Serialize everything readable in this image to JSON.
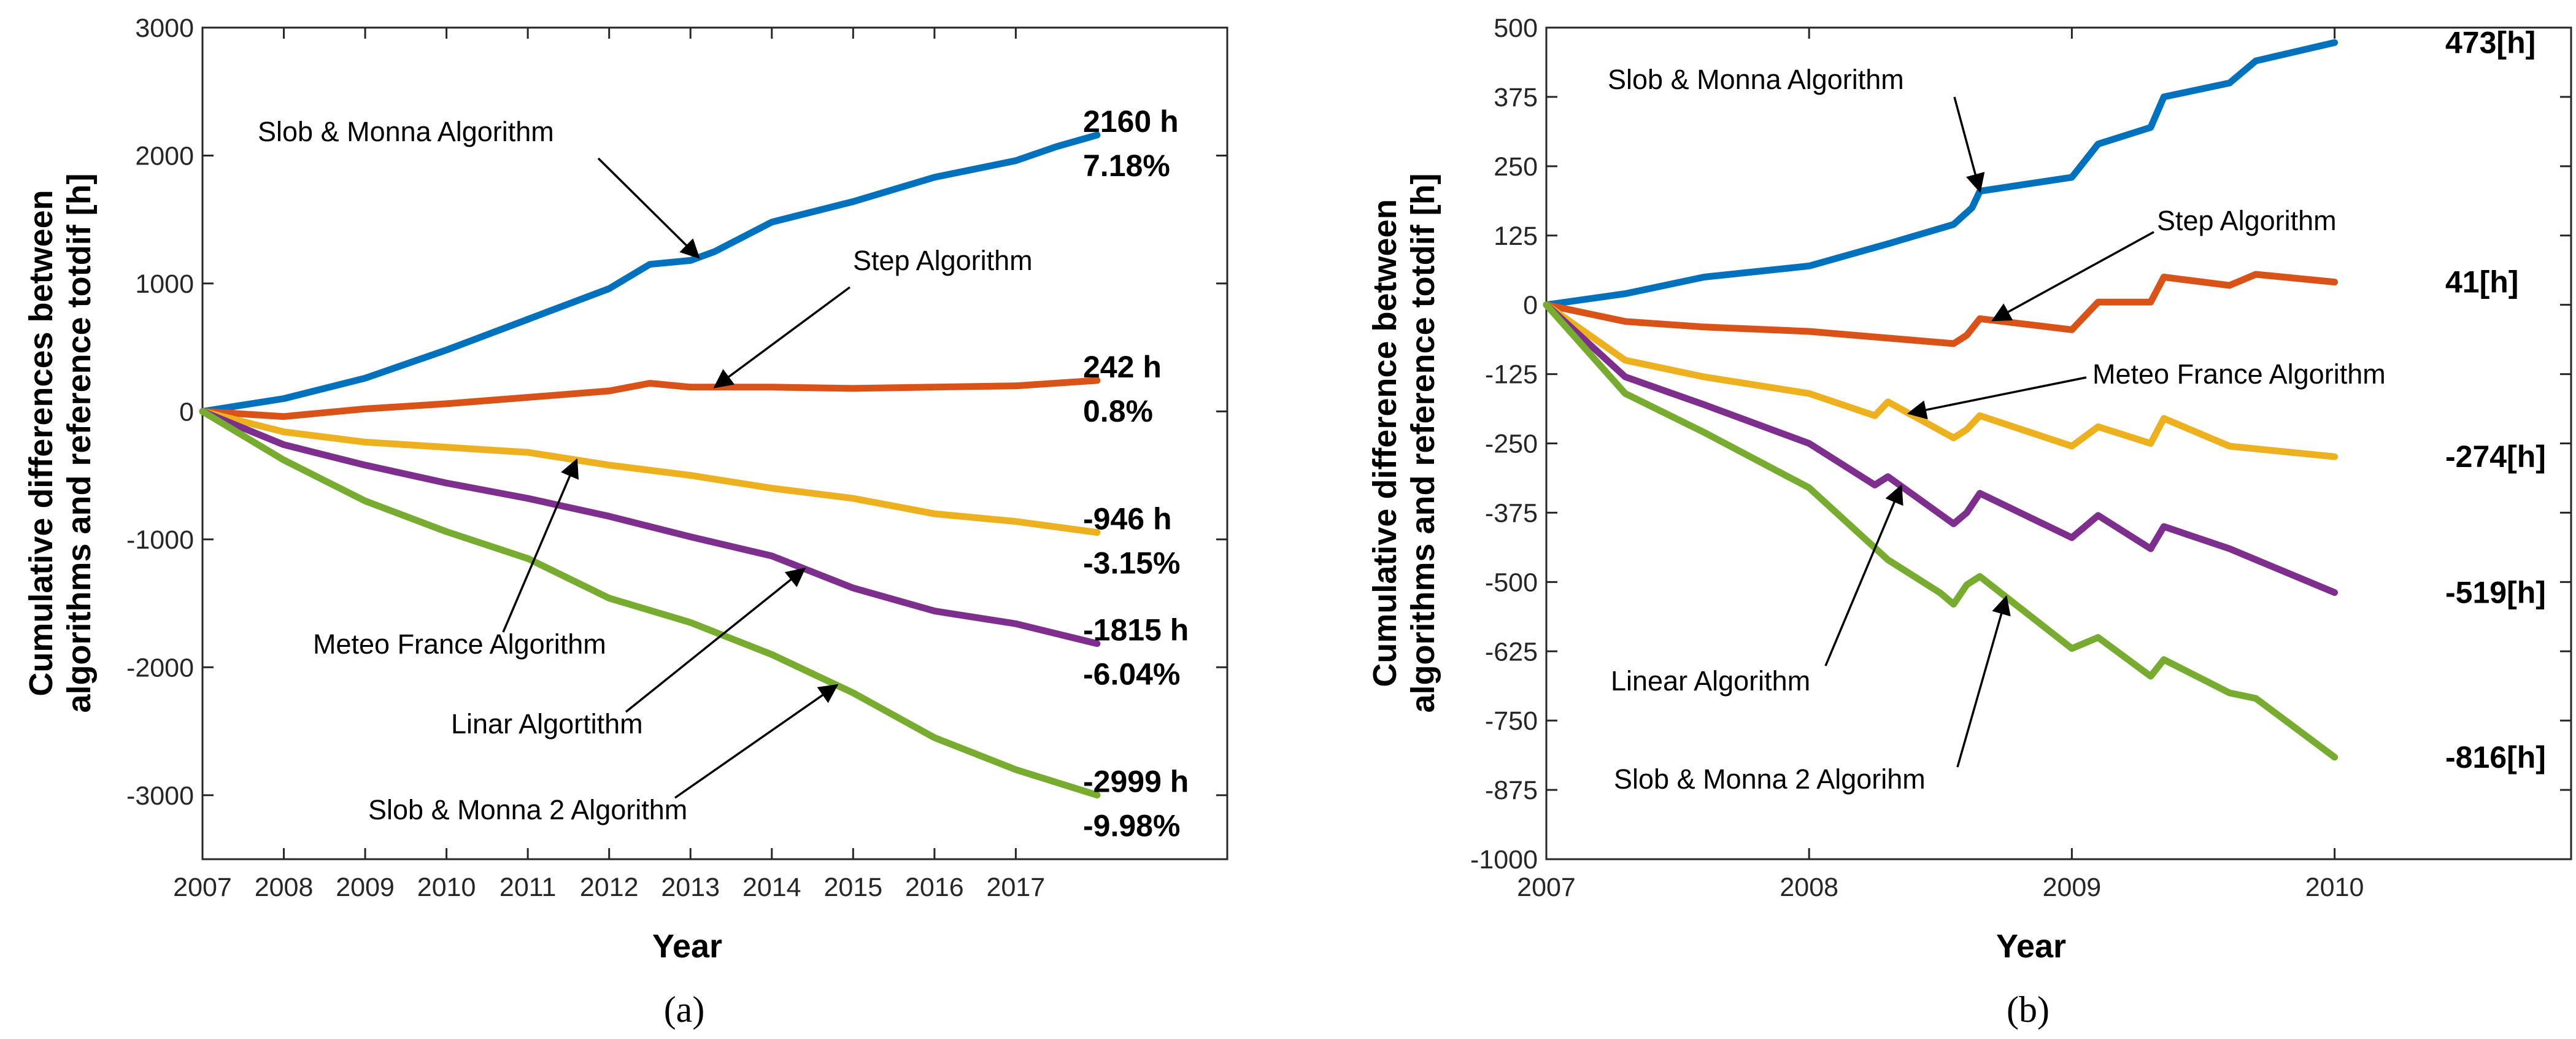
{
  "chart_data": [
    {
      "type": "line",
      "panel_label": "(a)",
      "xlabel": "Year",
      "ylabel": "Cumulative differences between algorithms and reference totdif [h]",
      "xlim": [
        2007,
        2019.6
      ],
      "ylim": [
        -3500,
        3000
      ],
      "xticks": [
        "2007",
        "2008",
        "2009",
        "2010",
        "2011",
        "2012",
        "2013",
        "2014",
        "2015",
        "2016",
        "2017"
      ],
      "yticks": [
        "3000",
        "2000",
        "1000",
        "0",
        "-1000",
        "-2000",
        "-3000"
      ],
      "series": [
        {
          "name": "Slob & Monna Algorithm",
          "color": "#0072BD",
          "x": [
            2007,
            2008,
            2009,
            2010,
            2011,
            2012,
            2012.5,
            2013,
            2013.3,
            2014,
            2015,
            2016,
            2017,
            2017.5,
            2018
          ],
          "y": [
            0,
            100,
            260,
            480,
            720,
            960,
            1150,
            1180,
            1250,
            1480,
            1640,
            1830,
            1960,
            2070,
            2160
          ]
        },
        {
          "name": "Step Algorithm",
          "color": "#D95319",
          "x": [
            2007,
            2008,
            2009,
            2010,
            2011,
            2012,
            2012.5,
            2013,
            2014,
            2015,
            2016,
            2017,
            2018
          ],
          "y": [
            0,
            -40,
            20,
            60,
            110,
            160,
            220,
            190,
            190,
            180,
            190,
            200,
            242
          ]
        },
        {
          "name": "Meteo France Algorithm",
          "color": "#EDB120",
          "x": [
            2007,
            2008,
            2009,
            2010,
            2011,
            2012,
            2013,
            2014,
            2015,
            2016,
            2017,
            2018
          ],
          "y": [
            0,
            -160,
            -240,
            -280,
            -320,
            -420,
            -500,
            -600,
            -680,
            -800,
            -860,
            -946
          ]
        },
        {
          "name": "Linar Algortithm",
          "color": "#7E2F8E",
          "x": [
            2007,
            2008,
            2009,
            2010,
            2011,
            2012,
            2013,
            2014,
            2015,
            2016,
            2017,
            2018
          ],
          "y": [
            0,
            -260,
            -420,
            -560,
            -680,
            -820,
            -980,
            -1130,
            -1380,
            -1560,
            -1660,
            -1815
          ]
        },
        {
          "name": "Slob & Monna 2 Algorithm",
          "color": "#77AC30",
          "x": [
            2007,
            2008,
            2009,
            2010,
            2011,
            2012,
            2013,
            2014,
            2015,
            2016,
            2017,
            2018
          ],
          "y": [
            0,
            -380,
            -700,
            -940,
            -1150,
            -1460,
            -1650,
            -1900,
            -2200,
            -2550,
            -2800,
            -2999
          ]
        }
      ],
      "end_labels": [
        {
          "lines": [
            "2160 h",
            "7.18%"
          ],
          "y": 2160
        },
        {
          "lines": [
            "242 h",
            "0.8%"
          ],
          "y": 242
        },
        {
          "lines": [
            "-946 h",
            "-3.15%"
          ],
          "y": -946
        },
        {
          "lines": [
            "-1815 h",
            "-6.04%"
          ],
          "y": -1815
        },
        {
          "lines": [
            "-2999 h",
            "-9.98%"
          ],
          "y": -2999
        }
      ],
      "annotations": [
        {
          "text": "Slob & Monna Algorithm",
          "series": 0,
          "target_x": 2013.1
        },
        {
          "text": "Step Algorithm",
          "series": 1,
          "target_x": 2013.3
        },
        {
          "text": "Meteo France Algorithm",
          "series": 2,
          "target_x": 2011.6
        },
        {
          "text": "Linar Algortithm",
          "series": 3,
          "target_x": 2014.4
        },
        {
          "text": "Slob & Monna 2 Algorithm",
          "series": 4,
          "target_x": 2014.8
        }
      ]
    },
    {
      "type": "line",
      "panel_label": "(b)",
      "xlabel": "Year",
      "ylabel": "Cumulative difference between algorithms and reference totdif [h]",
      "xlim": [
        2007,
        2010.9
      ],
      "ylim": [
        -1000,
        500
      ],
      "xticks": [
        "2007",
        "2008",
        "2009",
        "2010"
      ],
      "yticks": [
        "500",
        "375",
        "250",
        "125",
        "0",
        "-125",
        "-250",
        "-375",
        "-500",
        "-625",
        "-750",
        "-875",
        "-1000"
      ],
      "series": [
        {
          "name": "Slob & Monna Algorithm",
          "color": "#0072BD",
          "x": [
            2007,
            2007.3,
            2007.6,
            2008,
            2008.3,
            2008.55,
            2008.62,
            2008.65,
            2009,
            2009.1,
            2009.3,
            2009.35,
            2009.6,
            2009.7,
            2010
          ],
          "y": [
            0,
            20,
            50,
            70,
            110,
            145,
            175,
            205,
            230,
            290,
            320,
            375,
            400,
            440,
            473
          ]
        },
        {
          "name": "Step Algorithm",
          "color": "#D95319",
          "x": [
            2007,
            2007.3,
            2007.6,
            2008,
            2008.3,
            2008.55,
            2008.6,
            2008.65,
            2009,
            2009.1,
            2009.3,
            2009.35,
            2009.6,
            2009.7,
            2010
          ],
          "y": [
            0,
            -30,
            -40,
            -48,
            -60,
            -70,
            -55,
            -25,
            -45,
            5,
            5,
            50,
            35,
            55,
            41
          ]
        },
        {
          "name": "Meteo France Algorithm",
          "color": "#EDB120",
          "x": [
            2007,
            2007.3,
            2007.6,
            2008,
            2008.25,
            2008.3,
            2008.55,
            2008.6,
            2008.65,
            2009,
            2009.1,
            2009.3,
            2009.35,
            2009.6,
            2010
          ],
          "y": [
            0,
            -100,
            -130,
            -160,
            -200,
            -175,
            -240,
            -225,
            -200,
            -255,
            -220,
            -250,
            -205,
            -255,
            -274
          ]
        },
        {
          "name": "Linear Algorithm",
          "color": "#7E2F8E",
          "x": [
            2007,
            2007.3,
            2007.6,
            2008,
            2008.25,
            2008.3,
            2008.55,
            2008.6,
            2008.65,
            2009,
            2009.1,
            2009.3,
            2009.35,
            2009.6,
            2010
          ],
          "y": [
            0,
            -130,
            -180,
            -250,
            -325,
            -310,
            -395,
            -375,
            -340,
            -420,
            -380,
            -440,
            -400,
            -440,
            -519
          ]
        },
        {
          "name": "Slob & Monna 2 Algorithm",
          "color": "#77AC30",
          "x": [
            2007,
            2007.3,
            2007.6,
            2008,
            2008.3,
            2008.5,
            2008.55,
            2008.6,
            2008.65,
            2009,
            2009.1,
            2009.3,
            2009.35,
            2009.6,
            2009.7,
            2010
          ],
          "y": [
            0,
            -160,
            -230,
            -330,
            -460,
            -520,
            -540,
            -505,
            -490,
            -620,
            -600,
            -670,
            -640,
            -700,
            -710,
            -816
          ]
        }
      ],
      "end_labels": [
        {
          "lines": [
            "473[h]"
          ],
          "y": 473
        },
        {
          "lines": [
            "41[h]"
          ],
          "y": 41
        },
        {
          "lines": [
            "-274[h]"
          ],
          "y": -274
        },
        {
          "lines": [
            "-519[h]"
          ],
          "y": -519
        },
        {
          "lines": [
            "-816[h]"
          ],
          "y": -816
        }
      ],
      "annotations": [
        {
          "text": "Slob & Monna Algorithm",
          "series": 0,
          "target_x": 2008.65
        },
        {
          "text": "Step Algorithm",
          "series": 1,
          "target_x": 2008.7
        },
        {
          "text": "Meteo France Algorithm",
          "series": 2,
          "target_x": 2008.38
        },
        {
          "text": "Linear Algorithm",
          "series": 3,
          "target_x": 2008.35
        },
        {
          "text": "Slob & Monna 2 Algorihm",
          "series": 4,
          "target_x": 2008.75
        }
      ]
    }
  ]
}
